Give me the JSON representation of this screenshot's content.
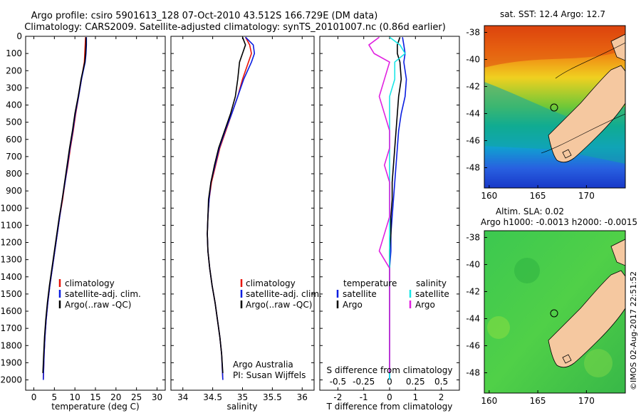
{
  "header": {
    "line1": "Argo profile: csiro 5901613_128 07-Oct-2010 43.512S 166.729E (DM data)",
    "line2": "Climatology: CARS2009. Satellite-adjusted climatology: synTS_20101007.nc (0.86d earlier)"
  },
  "colors": {
    "climatology": "#e8150a",
    "satellite": "#0a1ee0",
    "argo": "#000000",
    "salinity_satellite": "#18e6e6",
    "salinity_argo": "#e020e0",
    "land": "#f5c8a0"
  },
  "chart_data": [
    {
      "type": "line",
      "panel": "temperature",
      "xlabel": "temperature (deg C)",
      "ylabel": "",
      "xlim": [
        -2,
        32
      ],
      "ylim": [
        2060,
        0
      ],
      "xticks": [
        0,
        5,
        10,
        15,
        20,
        25,
        30
      ],
      "yticks": [
        0,
        100,
        200,
        300,
        400,
        500,
        600,
        700,
        800,
        900,
        1000,
        1100,
        1200,
        1300,
        1400,
        1500,
        1600,
        1700,
        1800,
        1900,
        2000
      ],
      "legend": [
        "climatology",
        "satellite-adj. clim.",
        "Argo(..raw -QC)"
      ],
      "series": [
        {
          "name": "climatology",
          "x": [
            12.6,
            12.5,
            12.4,
            12.3,
            11.6,
            10.9,
            10.2,
            9.6,
            8.9,
            8.3,
            7.6,
            7.0,
            6.3,
            5.7,
            5.1,
            4.5,
            3.9,
            3.4,
            3.0,
            2.7,
            2.5,
            2.3
          ],
          "y": [
            5,
            50,
            100,
            150,
            250,
            350,
            450,
            550,
            650,
            750,
            850,
            950,
            1050,
            1150,
            1250,
            1350,
            1450,
            1550,
            1650,
            1750,
            1850,
            2000
          ]
        },
        {
          "name": "satellite-adj. clim.",
          "x": [
            12.8,
            12.8,
            12.7,
            12.5,
            11.6,
            10.9,
            10.1,
            9.5,
            8.8,
            8.2,
            7.6,
            6.9,
            6.3,
            5.7,
            5.1,
            4.5,
            3.9,
            3.4,
            3.0,
            2.7,
            2.5,
            2.3
          ],
          "y": [
            5,
            50,
            100,
            150,
            250,
            350,
            450,
            550,
            650,
            750,
            850,
            950,
            1050,
            1150,
            1250,
            1350,
            1450,
            1550,
            1650,
            1750,
            1850,
            2000
          ]
        },
        {
          "name": "Argo(..raw -QC)",
          "x": [
            12.7,
            12.7,
            12.6,
            12.4,
            11.5,
            10.8,
            10.0,
            9.4,
            8.7,
            8.1,
            7.5,
            6.9,
            6.2,
            5.6,
            5.0,
            4.4,
            3.8,
            3.3,
            2.9,
            2.6,
            2.4,
            2.2
          ],
          "y": [
            5,
            50,
            100,
            150,
            250,
            350,
            450,
            550,
            650,
            750,
            850,
            950,
            1050,
            1150,
            1250,
            1350,
            1450,
            1550,
            1650,
            1750,
            1850,
            1960
          ]
        }
      ]
    },
    {
      "type": "line",
      "panel": "salinity",
      "xlabel": "salinity",
      "xlim": [
        33.8,
        36.2
      ],
      "ylim": [
        2060,
        0
      ],
      "xticks": [
        34,
        34.5,
        35,
        35.5,
        36
      ],
      "xticklabels": [
        "34",
        "34.5",
        "35",
        "35.5",
        "36"
      ],
      "legend": [
        "climatology",
        "satellite-adj. clim.",
        "Argo(..raw -QC)"
      ],
      "annotation": [
        "Argo Australia",
        "PI: Susan Wijffels"
      ],
      "series": [
        {
          "name": "climatology",
          "x": [
            35.05,
            35.12,
            35.15,
            35.1,
            35.0,
            34.92,
            34.82,
            34.72,
            34.62,
            34.55,
            34.48,
            34.44,
            34.42,
            34.41,
            34.42,
            34.45,
            34.49,
            34.54,
            34.58,
            34.62,
            34.65,
            34.67
          ],
          "y": [
            5,
            50,
            100,
            150,
            250,
            350,
            450,
            550,
            650,
            750,
            850,
            950,
            1050,
            1150,
            1250,
            1350,
            1450,
            1550,
            1650,
            1750,
            1850,
            2000
          ]
        },
        {
          "name": "satellite-adj. clim.",
          "x": [
            35.05,
            35.18,
            35.2,
            35.15,
            35.02,
            34.92,
            34.82,
            34.71,
            34.61,
            34.54,
            34.47,
            34.44,
            34.42,
            34.41,
            34.42,
            34.45,
            34.49,
            34.54,
            34.58,
            34.62,
            34.65,
            34.67
          ],
          "y": [
            5,
            50,
            100,
            150,
            250,
            350,
            450,
            550,
            650,
            750,
            850,
            950,
            1050,
            1150,
            1250,
            1350,
            1450,
            1550,
            1650,
            1750,
            1850,
            2000
          ]
        },
        {
          "name": "Argo(..raw -QC)",
          "x": [
            35.0,
            35.05,
            35.0,
            34.95,
            34.92,
            34.88,
            34.8,
            34.7,
            34.6,
            34.53,
            34.47,
            34.43,
            34.42,
            34.41,
            34.42,
            34.45,
            34.49,
            34.54,
            34.58,
            34.62,
            34.65,
            34.67
          ],
          "y": [
            5,
            50,
            100,
            150,
            250,
            350,
            450,
            550,
            650,
            750,
            850,
            950,
            1050,
            1150,
            1250,
            1350,
            1450,
            1550,
            1650,
            1750,
            1850,
            1960
          ]
        }
      ]
    },
    {
      "type": "line",
      "panel": "difference",
      "xlabel": "T difference from climatology",
      "xlabel2": "S difference from climatology",
      "xlim": [
        -2.7,
        2.7
      ],
      "ylim": [
        2060,
        0
      ],
      "xticks": [
        -2,
        -1,
        0,
        1,
        2
      ],
      "xticks2": [
        -0.5,
        -0.25,
        0,
        0.25,
        0.5
      ],
      "xticklabels2": [
        "-0.5",
        "-0.25",
        "0",
        "0.25",
        "0.5"
      ],
      "legend_titles": [
        "temperature",
        "salinity"
      ],
      "legend": [
        "satellite",
        "Argo",
        "satellite",
        "Argo"
      ],
      "series": [
        {
          "name": "temperature satellite",
          "x": [
            0.5,
            0.55,
            0.6,
            0.55,
            0.65,
            0.6,
            0.45,
            0.35,
            0.3,
            0.25,
            0.2,
            0.15,
            0.1,
            0.05,
            0.05,
            0.0,
            0.0,
            0.0,
            0.0,
            0.0,
            0.0,
            0.0
          ],
          "y": [
            5,
            50,
            100,
            150,
            250,
            350,
            450,
            550,
            650,
            750,
            850,
            950,
            1050,
            1150,
            1250,
            1350,
            1450,
            1550,
            1650,
            1750,
            1850,
            2000
          ]
        },
        {
          "name": "temperature Argo",
          "x": [
            0.4,
            0.3,
            0.3,
            0.4,
            0.45,
            0.35,
            0.3,
            0.25,
            0.2,
            0.15,
            0.1,
            0.1,
            0.05,
            0.05,
            0.0,
            0.0,
            0.0,
            0.0,
            0.0,
            0.0,
            0.0,
            0.0
          ],
          "y": [
            5,
            50,
            100,
            150,
            250,
            350,
            450,
            550,
            650,
            750,
            850,
            950,
            1050,
            1150,
            1250,
            1350,
            1450,
            1550,
            1650,
            1750,
            1850,
            1960
          ]
        },
        {
          "name": "salinity satellite",
          "x": [
            0.0,
            0.1,
            0.15,
            0.05,
            0.05,
            0.0,
            0.0,
            0.0,
            0.0,
            0.0,
            0.0,
            0.0,
            0.0,
            0.0,
            0.0,
            0.0,
            0.0,
            0.0,
            0.0,
            0.0,
            0.0,
            0.0
          ],
          "y": [
            5,
            50,
            100,
            150,
            250,
            350,
            450,
            550,
            650,
            750,
            850,
            950,
            1050,
            1150,
            1250,
            1350,
            1450,
            1550,
            1650,
            1750,
            1850,
            2000
          ]
        },
        {
          "name": "salinity Argo",
          "x": [
            -0.1,
            -0.2,
            -0.15,
            0.0,
            -0.05,
            -0.1,
            -0.05,
            0.0,
            0.0,
            -0.05,
            0.0,
            0.0,
            0.0,
            -0.05,
            -0.1,
            0.0,
            0.0,
            0.0,
            0.0,
            0.0,
            0.0,
            0.0
          ],
          "y": [
            5,
            50,
            100,
            150,
            250,
            350,
            450,
            550,
            650,
            750,
            850,
            950,
            1050,
            1150,
            1250,
            1350,
            1450,
            1550,
            1650,
            1750,
            1850,
            1960
          ]
        }
      ]
    },
    {
      "type": "heatmap",
      "panel": "sst-map",
      "title": "sat. SST: 12.4  Argo: 12.7",
      "xlim": [
        159.5,
        174
      ],
      "ylim": [
        -49.5,
        -37.5
      ],
      "xticks": [
        160,
        165,
        170
      ],
      "yticks": [
        -38,
        -40,
        -42,
        -44,
        -46,
        -48
      ],
      "float_position": [
        166.729,
        -43.512
      ]
    },
    {
      "type": "heatmap",
      "panel": "sla-map",
      "title": "Altim. SLA: 0.02",
      "subtitle": "Argo h1000: -0.0013  h2000: -0.0015",
      "xlim": [
        159.5,
        174
      ],
      "ylim": [
        -49.5,
        -37.5
      ],
      "xticks": [
        160,
        165,
        170
      ],
      "yticks": [
        -38,
        -40,
        -42,
        -44,
        -46,
        -48
      ],
      "float_position": [
        166.729,
        -43.512
      ]
    }
  ],
  "footer": {
    "credit": "©IMOS 02-Aug-2017 22:51:52"
  }
}
